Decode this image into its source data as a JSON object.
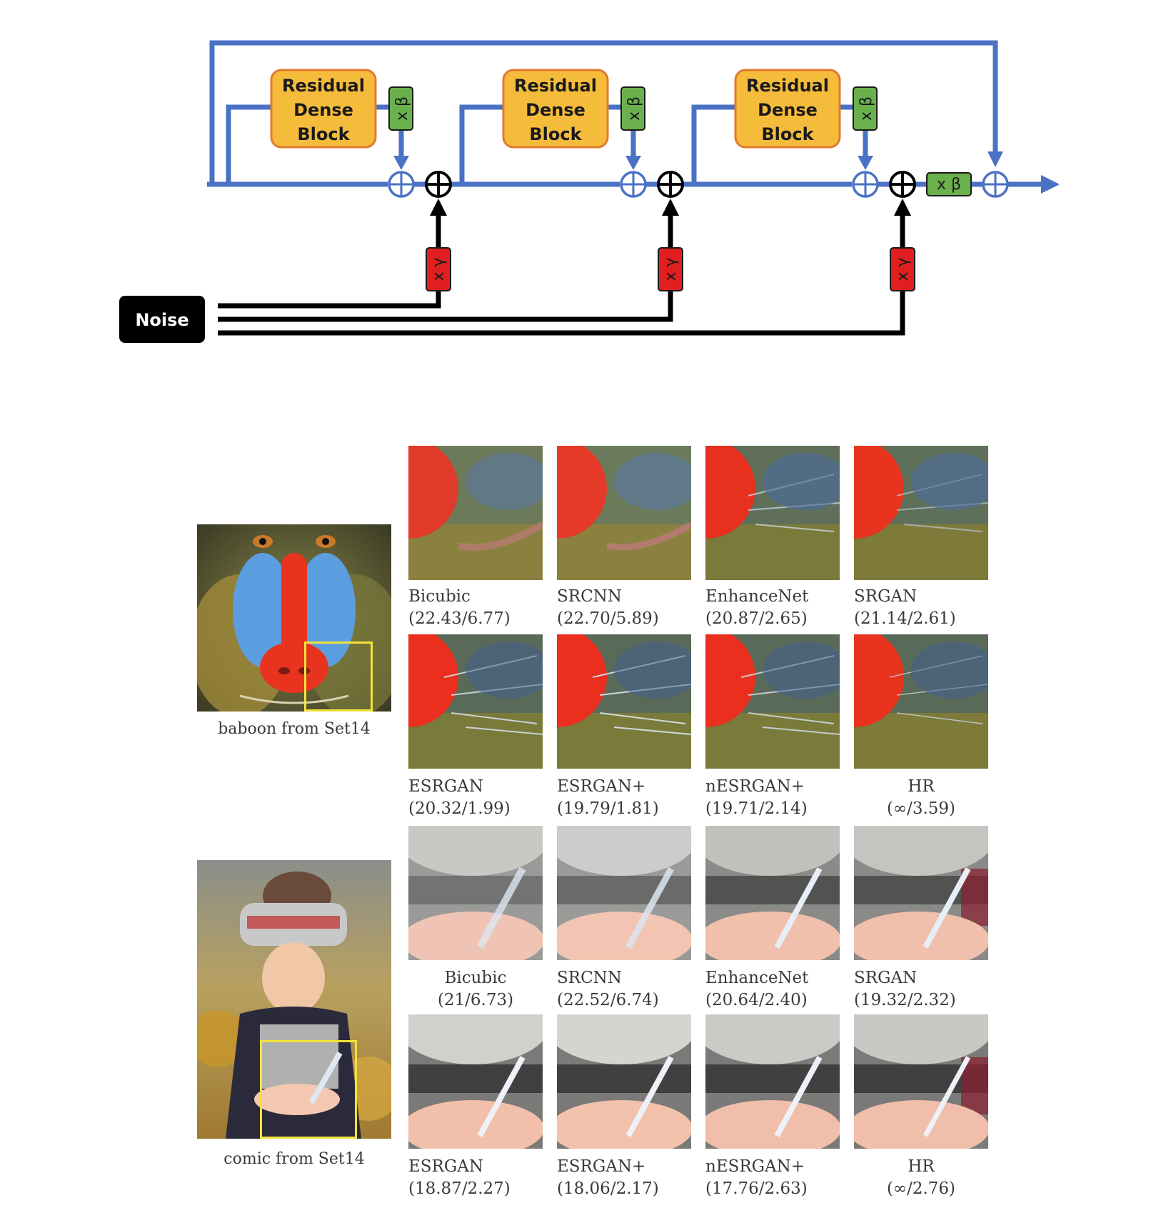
{
  "diagram": {
    "blocks": [
      {
        "lines": [
          "Residual",
          "Dense",
          "Block"
        ]
      },
      {
        "lines": [
          "Residual",
          "Dense",
          "Block"
        ]
      },
      {
        "lines": [
          "Residual",
          "Dense",
          "Block"
        ]
      }
    ],
    "beta_label": "x β",
    "gamma_label": "x γ",
    "noise_label": "Noise",
    "colors": {
      "flow": "#4a72c4",
      "block": "#f5bc3c",
      "block_border": "#e07a2c",
      "beta": "#6ab04c",
      "gamma": "#e02020",
      "noise": "#000000"
    }
  },
  "figure": {
    "baboon": {
      "caption": "baboon from Set14",
      "row1": [
        {
          "method": "Bicubic",
          "score": "(22.43/6.77)"
        },
        {
          "method": "SRCNN",
          "score": "(22.70/5.89)"
        },
        {
          "method": "EnhanceNet",
          "score": "(20.87/2.65)"
        },
        {
          "method": "SRGAN",
          "score": "(21.14/2.61)"
        }
      ],
      "row2": [
        {
          "method": "ESRGAN",
          "score": "(20.32/1.99)"
        },
        {
          "method": "ESRGAN+",
          "score": "(19.79/1.81)"
        },
        {
          "method": "nESRGAN+",
          "score": "(19.71/2.14)"
        },
        {
          "method": "HR",
          "score": "(∞/3.59)"
        }
      ]
    },
    "comic": {
      "caption": "comic from Set14",
      "row1": [
        {
          "method": "Bicubic",
          "score": "(21/6.73)"
        },
        {
          "method": "SRCNN",
          "score": "(22.52/6.74)"
        },
        {
          "method": "EnhanceNet",
          "score": "(20.64/2.40)"
        },
        {
          "method": "SRGAN",
          "score": "(19.32/2.32)"
        }
      ],
      "row2": [
        {
          "method": "ESRGAN",
          "score": "(18.87/2.27)"
        },
        {
          "method": "ESRGAN+",
          "score": "(18.06/2.17)"
        },
        {
          "method": "nESRGAN+",
          "score": "(17.76/2.63)"
        },
        {
          "method": "HR",
          "score": "(∞/2.76)"
        }
      ]
    }
  }
}
